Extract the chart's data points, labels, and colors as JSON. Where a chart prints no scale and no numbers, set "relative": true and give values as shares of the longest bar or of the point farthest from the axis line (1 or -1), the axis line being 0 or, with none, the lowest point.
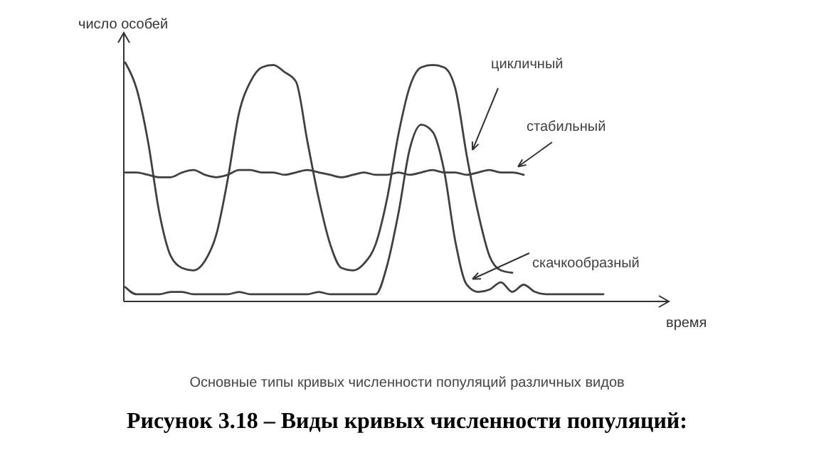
{
  "chart_data": {
    "type": "line",
    "relative": true,
    "title": "Рисунок 3.18 – Виды кривых численности популяций:",
    "subtitle": "Основные типы кривых численности популяций различных видов",
    "xlabel": "время",
    "ylabel": "число особей",
    "grid": false,
    "marker": "none",
    "line_style": "solid",
    "categories": [
      null,
      null,
      null,
      null,
      null,
      null,
      null,
      null,
      null,
      null,
      null,
      null,
      null,
      null,
      null,
      null,
      null,
      null,
      null,
      null,
      null,
      null,
      null,
      null,
      null,
      null,
      null,
      null,
      null,
      null,
      null,
      null,
      null,
      null,
      null,
      null,
      null,
      null,
      null,
      null,
      null,
      null,
      null,
      null,
      null,
      null,
      null,
      null
    ],
    "series": [
      {
        "name": "цикличный",
        "color": "#404040",
        "values": [
          1.0,
          0.89,
          0.67,
          0.37,
          0.19,
          0.14,
          0.13,
          0.17,
          0.28,
          0.51,
          0.79,
          0.92,
          0.98,
          0.99,
          0.96,
          0.92,
          0.67,
          0.43,
          0.24,
          0.14,
          0.13,
          0.16,
          0.24,
          0.43,
          0.7,
          0.9,
          0.98,
          0.99,
          0.98,
          0.89,
          0.61,
          0.37,
          0.19,
          0.13,
          0.12,
          null,
          null,
          null,
          null,
          null,
          null,
          null,
          null,
          null,
          null,
          null,
          null,
          null
        ]
      },
      {
        "name": "стабильный",
        "color": "#404040",
        "values": [
          0.54,
          0.54,
          0.53,
          0.52,
          0.52,
          0.54,
          0.55,
          0.53,
          0.52,
          0.53,
          0.55,
          0.55,
          0.54,
          0.54,
          0.53,
          0.54,
          0.55,
          0.54,
          0.53,
          0.52,
          0.53,
          0.54,
          0.53,
          0.53,
          0.54,
          0.53,
          0.54,
          0.55,
          0.54,
          0.54,
          0.53,
          0.54,
          0.55,
          0.54,
          0.54,
          0.53,
          null,
          null,
          null,
          null,
          null,
          null,
          null,
          null,
          null,
          null,
          null,
          null
        ]
      },
      {
        "name": "скачкообразный",
        "color": "#404040",
        "values": [
          0.06,
          0.03,
          0.03,
          0.03,
          0.04,
          0.04,
          0.03,
          0.03,
          0.03,
          0.03,
          0.04,
          0.03,
          0.03,
          0.03,
          0.03,
          0.03,
          0.03,
          0.04,
          0.03,
          0.03,
          0.03,
          0.03,
          0.03,
          0.15,
          0.37,
          0.64,
          0.74,
          0.71,
          0.55,
          0.25,
          0.07,
          0.04,
          0.05,
          0.08,
          0.04,
          0.07,
          0.04,
          0.03,
          0.03,
          0.03,
          0.03,
          0.03,
          0.03,
          null,
          null,
          null,
          null,
          null
        ]
      }
    ]
  }
}
